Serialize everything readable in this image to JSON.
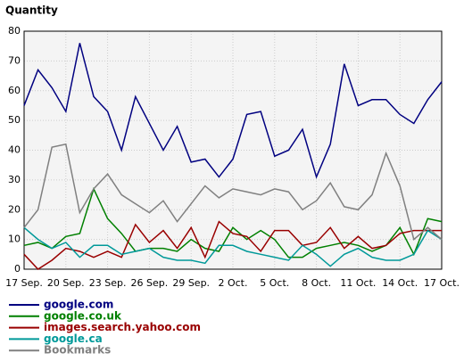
{
  "chart_data": {
    "type": "line",
    "title": "Quantity",
    "categories": [
      "17 Sep.",
      null,
      null,
      "20 Sep.",
      null,
      null,
      "23 Sep.",
      null,
      null,
      "26 Sep.",
      null,
      null,
      "29 Sep.",
      null,
      null,
      "2 Oct.",
      null,
      null,
      "5 Oct.",
      null,
      null,
      "8 Oct.",
      null,
      null,
      "11 Oct.",
      null,
      null,
      "14 Oct.",
      null,
      null,
      "17 Oct."
    ],
    "series": [
      {
        "name": "google.com",
        "color": "#000080",
        "values": [
          55,
          67,
          61,
          53,
          76,
          58,
          53,
          40,
          58,
          49,
          40,
          48,
          36,
          37,
          31,
          37,
          52,
          53,
          38,
          40,
          47,
          31,
          42,
          69,
          55,
          57,
          57,
          52,
          49,
          57,
          63
        ]
      },
      {
        "name": "google.co.uk",
        "color": "#008000",
        "values": [
          8,
          9,
          7,
          11,
          12,
          27,
          17,
          12,
          6,
          7,
          7,
          6,
          10,
          7,
          6,
          14,
          10,
          13,
          10,
          4,
          4,
          7,
          8,
          9,
          8,
          6,
          8,
          14,
          5,
          17,
          16
        ]
      },
      {
        "name": "images.search.yahoo.com",
        "color": "#990000",
        "values": [
          5,
          0,
          3,
          7,
          6,
          4,
          6,
          4,
          15,
          9,
          13,
          7,
          14,
          4,
          16,
          12,
          11,
          6,
          13,
          13,
          8,
          9,
          14,
          7,
          11,
          7,
          8,
          12,
          13,
          13,
          13
        ]
      },
      {
        "name": "google.ca",
        "color": "#009999",
        "values": [
          14,
          10,
          7,
          9,
          4,
          8,
          8,
          5,
          6,
          7,
          4,
          3,
          3,
          2,
          8,
          8,
          6,
          5,
          4,
          3,
          8,
          5,
          1,
          5,
          7,
          4,
          3,
          3,
          5,
          13,
          10
        ]
      },
      {
        "name": "Bookmarks",
        "color": "#808080",
        "values": [
          14,
          20,
          41,
          42,
          19,
          27,
          32,
          25,
          22,
          19,
          23,
          16,
          22,
          28,
          24,
          27,
          26,
          25,
          27,
          26,
          20,
          23,
          29,
          21,
          20,
          25,
          39,
          28,
          10,
          14,
          10
        ]
      }
    ],
    "ylim": [
      0,
      80
    ],
    "yticks": [
      0,
      10,
      20,
      30,
      40,
      50,
      60,
      70,
      80
    ],
    "grid": true
  }
}
